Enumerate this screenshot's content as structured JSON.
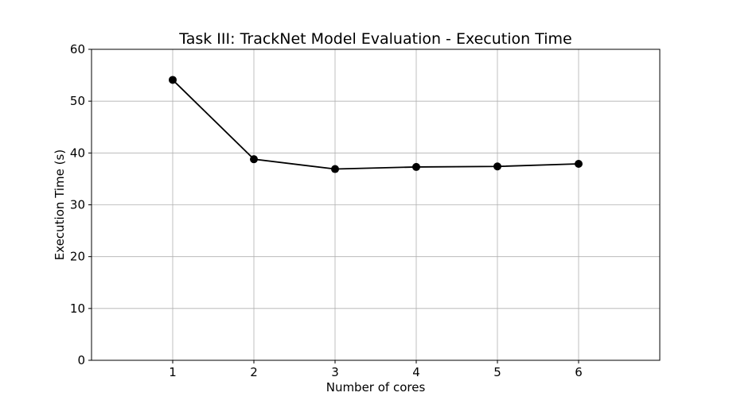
{
  "chart_data": {
    "type": "line",
    "title": "Task III: TrackNet Model Evaluation - Execution Time",
    "xlabel": "Number of cores",
    "ylabel": "Execution Time (s)",
    "xlim": [
      0,
      7
    ],
    "ylim": [
      0,
      60
    ],
    "x_ticks": [
      1,
      2,
      3,
      4,
      5,
      6
    ],
    "y_ticks": [
      0,
      10,
      20,
      30,
      40,
      50,
      60
    ],
    "grid": true,
    "series": [
      {
        "color": "#000000",
        "marker": "circle",
        "x": [
          1,
          2,
          3,
          4,
          5,
          6
        ],
        "y": [
          54.1,
          38.8,
          36.9,
          37.3,
          37.4,
          37.9
        ]
      }
    ]
  }
}
